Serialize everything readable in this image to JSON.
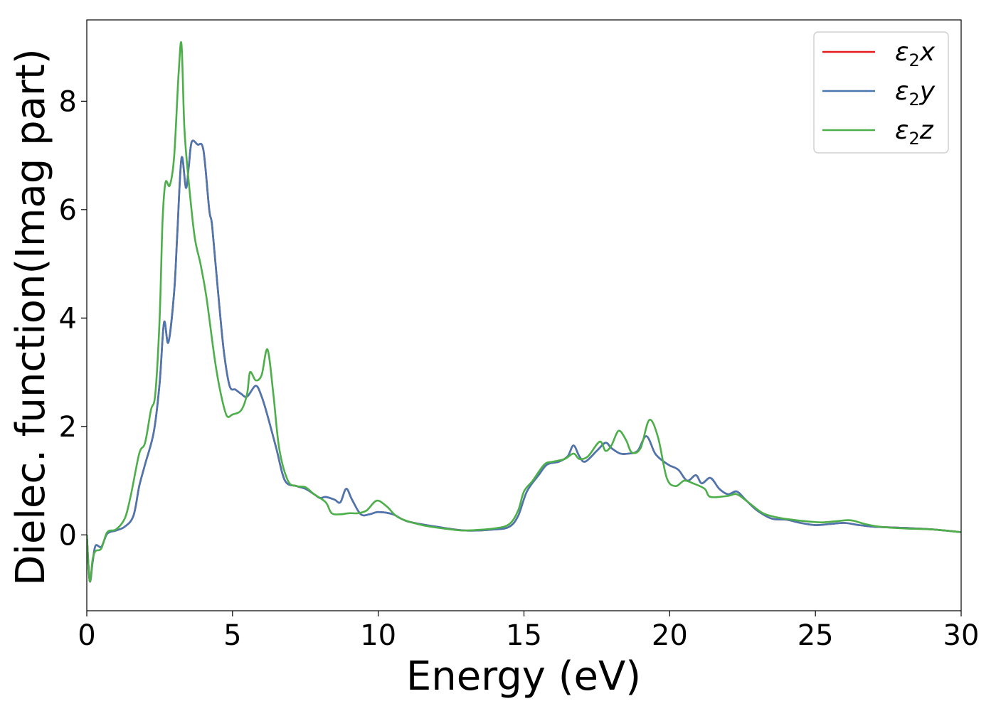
{
  "chart_data": {
    "type": "line",
    "xlabel": "Energy (eV)",
    "ylabel": "Dielec. function(Imag part)",
    "xlim": [
      0,
      30
    ],
    "ylim": [
      -1.4,
      9.5
    ],
    "xticks": [
      0,
      5,
      10,
      15,
      20,
      25,
      30
    ],
    "yticks": [
      0,
      2,
      4,
      6,
      8
    ],
    "grid": false,
    "legend_position": "top-right",
    "series": [
      {
        "name": "ε2x",
        "base": "ε",
        "sub": "2",
        "var": "x",
        "color": "#e41a1c",
        "points": [
          [
            0,
            0
          ],
          [
            0.1,
            -0.85
          ],
          [
            0.2,
            -0.5
          ],
          [
            0.3,
            -0.2
          ],
          [
            0.5,
            -0.22
          ],
          [
            0.7,
            0.02
          ],
          [
            1.0,
            0.08
          ],
          [
            1.3,
            0.15
          ],
          [
            1.6,
            0.35
          ],
          [
            1.8,
            0.9
          ],
          [
            2.0,
            1.3
          ],
          [
            2.3,
            1.9
          ],
          [
            2.5,
            2.8
          ],
          [
            2.65,
            3.92
          ],
          [
            2.8,
            3.55
          ],
          [
            3.0,
            4.5
          ],
          [
            3.1,
            5.5
          ],
          [
            3.25,
            6.95
          ],
          [
            3.4,
            6.4
          ],
          [
            3.5,
            6.8
          ],
          [
            3.6,
            7.25
          ],
          [
            3.8,
            7.2
          ],
          [
            4.0,
            7.1
          ],
          [
            4.2,
            6.0
          ],
          [
            4.3,
            5.7
          ],
          [
            4.5,
            4.5
          ],
          [
            4.7,
            3.4
          ],
          [
            4.9,
            2.75
          ],
          [
            5.1,
            2.68
          ],
          [
            5.3,
            2.6
          ],
          [
            5.5,
            2.55
          ],
          [
            5.8,
            2.75
          ],
          [
            6.0,
            2.55
          ],
          [
            6.2,
            2.2
          ],
          [
            6.5,
            1.6
          ],
          [
            6.8,
            1.0
          ],
          [
            7.2,
            0.9
          ],
          [
            7.5,
            0.85
          ],
          [
            7.8,
            0.75
          ],
          [
            8.0,
            0.68
          ],
          [
            8.2,
            0.7
          ],
          [
            8.5,
            0.65
          ],
          [
            8.7,
            0.6
          ],
          [
            8.9,
            0.85
          ],
          [
            9.1,
            0.65
          ],
          [
            9.4,
            0.38
          ],
          [
            9.7,
            0.38
          ],
          [
            10.0,
            0.42
          ],
          [
            10.5,
            0.38
          ],
          [
            11.0,
            0.25
          ],
          [
            12.0,
            0.15
          ],
          [
            13.0,
            0.08
          ],
          [
            14.0,
            0.1
          ],
          [
            14.5,
            0.15
          ],
          [
            14.8,
            0.35
          ],
          [
            15.1,
            0.8
          ],
          [
            15.5,
            1.1
          ],
          [
            15.8,
            1.3
          ],
          [
            16.2,
            1.35
          ],
          [
            16.5,
            1.45
          ],
          [
            16.7,
            1.65
          ],
          [
            16.9,
            1.45
          ],
          [
            17.1,
            1.35
          ],
          [
            17.5,
            1.55
          ],
          [
            17.8,
            1.7
          ],
          [
            18.0,
            1.6
          ],
          [
            18.3,
            1.5
          ],
          [
            18.6,
            1.5
          ],
          [
            18.9,
            1.55
          ],
          [
            19.2,
            1.82
          ],
          [
            19.5,
            1.5
          ],
          [
            19.8,
            1.35
          ],
          [
            20.0,
            1.28
          ],
          [
            20.3,
            1.2
          ],
          [
            20.6,
            1.0
          ],
          [
            20.9,
            1.1
          ],
          [
            21.1,
            0.95
          ],
          [
            21.4,
            1.05
          ],
          [
            21.7,
            0.85
          ],
          [
            22.0,
            0.75
          ],
          [
            22.3,
            0.8
          ],
          [
            22.6,
            0.65
          ],
          [
            23.0,
            0.45
          ],
          [
            23.5,
            0.3
          ],
          [
            24.0,
            0.28
          ],
          [
            24.5,
            0.22
          ],
          [
            25.0,
            0.18
          ],
          [
            25.5,
            0.2
          ],
          [
            26.0,
            0.22
          ],
          [
            26.5,
            0.18
          ],
          [
            27.0,
            0.15
          ],
          [
            28.0,
            0.13
          ],
          [
            29.0,
            0.1
          ],
          [
            30.0,
            0.05
          ]
        ]
      },
      {
        "name": "ε2y",
        "base": "ε",
        "sub": "2",
        "var": "y",
        "color": "#4a77b0",
        "points": [
          [
            0,
            0
          ],
          [
            0.1,
            -0.85
          ],
          [
            0.2,
            -0.5
          ],
          [
            0.3,
            -0.2
          ],
          [
            0.5,
            -0.22
          ],
          [
            0.7,
            0.02
          ],
          [
            1.0,
            0.08
          ],
          [
            1.3,
            0.15
          ],
          [
            1.6,
            0.35
          ],
          [
            1.8,
            0.9
          ],
          [
            2.0,
            1.3
          ],
          [
            2.3,
            1.9
          ],
          [
            2.5,
            2.8
          ],
          [
            2.65,
            3.92
          ],
          [
            2.8,
            3.55
          ],
          [
            3.0,
            4.5
          ],
          [
            3.1,
            5.5
          ],
          [
            3.25,
            6.95
          ],
          [
            3.4,
            6.4
          ],
          [
            3.5,
            6.8
          ],
          [
            3.6,
            7.25
          ],
          [
            3.8,
            7.2
          ],
          [
            4.0,
            7.1
          ],
          [
            4.2,
            6.0
          ],
          [
            4.3,
            5.7
          ],
          [
            4.5,
            4.5
          ],
          [
            4.7,
            3.4
          ],
          [
            4.9,
            2.75
          ],
          [
            5.1,
            2.68
          ],
          [
            5.3,
            2.6
          ],
          [
            5.5,
            2.55
          ],
          [
            5.8,
            2.75
          ],
          [
            6.0,
            2.55
          ],
          [
            6.2,
            2.2
          ],
          [
            6.5,
            1.6
          ],
          [
            6.8,
            1.0
          ],
          [
            7.2,
            0.9
          ],
          [
            7.5,
            0.85
          ],
          [
            7.8,
            0.75
          ],
          [
            8.0,
            0.68
          ],
          [
            8.2,
            0.7
          ],
          [
            8.5,
            0.65
          ],
          [
            8.7,
            0.6
          ],
          [
            8.9,
            0.85
          ],
          [
            9.1,
            0.65
          ],
          [
            9.4,
            0.38
          ],
          [
            9.7,
            0.38
          ],
          [
            10.0,
            0.42
          ],
          [
            10.5,
            0.38
          ],
          [
            11.0,
            0.25
          ],
          [
            12.0,
            0.15
          ],
          [
            13.0,
            0.08
          ],
          [
            14.0,
            0.1
          ],
          [
            14.5,
            0.15
          ],
          [
            14.8,
            0.35
          ],
          [
            15.1,
            0.8
          ],
          [
            15.5,
            1.1
          ],
          [
            15.8,
            1.3
          ],
          [
            16.2,
            1.35
          ],
          [
            16.5,
            1.45
          ],
          [
            16.7,
            1.65
          ],
          [
            16.9,
            1.45
          ],
          [
            17.1,
            1.35
          ],
          [
            17.5,
            1.55
          ],
          [
            17.8,
            1.7
          ],
          [
            18.0,
            1.6
          ],
          [
            18.3,
            1.5
          ],
          [
            18.6,
            1.5
          ],
          [
            18.9,
            1.55
          ],
          [
            19.2,
            1.82
          ],
          [
            19.5,
            1.5
          ],
          [
            19.8,
            1.35
          ],
          [
            20.0,
            1.28
          ],
          [
            20.3,
            1.2
          ],
          [
            20.6,
            1.0
          ],
          [
            20.9,
            1.1
          ],
          [
            21.1,
            0.95
          ],
          [
            21.4,
            1.05
          ],
          [
            21.7,
            0.85
          ],
          [
            22.0,
            0.75
          ],
          [
            22.3,
            0.8
          ],
          [
            22.6,
            0.65
          ],
          [
            23.0,
            0.45
          ],
          [
            23.5,
            0.3
          ],
          [
            24.0,
            0.28
          ],
          [
            24.5,
            0.22
          ],
          [
            25.0,
            0.18
          ],
          [
            25.5,
            0.2
          ],
          [
            26.0,
            0.22
          ],
          [
            26.5,
            0.18
          ],
          [
            27.0,
            0.15
          ],
          [
            28.0,
            0.13
          ],
          [
            29.0,
            0.1
          ],
          [
            30.0,
            0.05
          ]
        ]
      },
      {
        "name": "ε2z",
        "base": "ε",
        "sub": "2",
        "var": "z",
        "color": "#4daf4a",
        "points": [
          [
            0,
            0
          ],
          [
            0.1,
            -0.85
          ],
          [
            0.2,
            -0.45
          ],
          [
            0.3,
            -0.3
          ],
          [
            0.5,
            -0.25
          ],
          [
            0.7,
            0.05
          ],
          [
            1.0,
            0.1
          ],
          [
            1.3,
            0.3
          ],
          [
            1.5,
            0.7
          ],
          [
            1.8,
            1.5
          ],
          [
            2.0,
            1.7
          ],
          [
            2.2,
            2.3
          ],
          [
            2.35,
            2.6
          ],
          [
            2.5,
            4.0
          ],
          [
            2.6,
            5.8
          ],
          [
            2.7,
            6.5
          ],
          [
            2.85,
            6.45
          ],
          [
            3.0,
            7.0
          ],
          [
            3.15,
            8.5
          ],
          [
            3.25,
            9.05
          ],
          [
            3.35,
            7.5
          ],
          [
            3.5,
            6.5
          ],
          [
            3.7,
            5.5
          ],
          [
            3.9,
            5.0
          ],
          [
            4.1,
            4.4
          ],
          [
            4.4,
            3.2
          ],
          [
            4.6,
            2.6
          ],
          [
            4.8,
            2.2
          ],
          [
            5.0,
            2.22
          ],
          [
            5.3,
            2.3
          ],
          [
            5.5,
            2.6
          ],
          [
            5.6,
            3.0
          ],
          [
            5.8,
            2.85
          ],
          [
            6.0,
            2.95
          ],
          [
            6.2,
            3.42
          ],
          [
            6.4,
            2.6
          ],
          [
            6.6,
            1.6
          ],
          [
            6.9,
            1.0
          ],
          [
            7.2,
            0.9
          ],
          [
            7.5,
            0.88
          ],
          [
            7.8,
            0.75
          ],
          [
            8.2,
            0.6
          ],
          [
            8.4,
            0.4
          ],
          [
            8.7,
            0.38
          ],
          [
            9.0,
            0.4
          ],
          [
            9.3,
            0.4
          ],
          [
            9.6,
            0.45
          ],
          [
            9.95,
            0.63
          ],
          [
            10.3,
            0.52
          ],
          [
            10.7,
            0.32
          ],
          [
            11.5,
            0.18
          ],
          [
            12.5,
            0.1
          ],
          [
            13.0,
            0.08
          ],
          [
            14.0,
            0.12
          ],
          [
            14.5,
            0.2
          ],
          [
            14.8,
            0.45
          ],
          [
            15.0,
            0.8
          ],
          [
            15.3,
            1.0
          ],
          [
            15.7,
            1.3
          ],
          [
            16.0,
            1.35
          ],
          [
            16.4,
            1.4
          ],
          [
            16.7,
            1.5
          ],
          [
            16.9,
            1.4
          ],
          [
            17.2,
            1.45
          ],
          [
            17.6,
            1.72
          ],
          [
            17.8,
            1.55
          ],
          [
            18.0,
            1.65
          ],
          [
            18.25,
            1.92
          ],
          [
            18.5,
            1.75
          ],
          [
            18.7,
            1.52
          ],
          [
            19.0,
            1.6
          ],
          [
            19.3,
            2.12
          ],
          [
            19.6,
            1.8
          ],
          [
            19.9,
            1.05
          ],
          [
            20.2,
            0.9
          ],
          [
            20.5,
            1.0
          ],
          [
            20.8,
            0.95
          ],
          [
            21.2,
            0.85
          ],
          [
            21.4,
            0.7
          ],
          [
            22.0,
            0.72
          ],
          [
            22.3,
            0.75
          ],
          [
            22.7,
            0.6
          ],
          [
            23.2,
            0.4
          ],
          [
            23.7,
            0.32
          ],
          [
            24.2,
            0.28
          ],
          [
            24.7,
            0.25
          ],
          [
            25.2,
            0.23
          ],
          [
            25.7,
            0.25
          ],
          [
            26.2,
            0.27
          ],
          [
            26.7,
            0.2
          ],
          [
            27.2,
            0.15
          ],
          [
            28.0,
            0.12
          ],
          [
            29.0,
            0.1
          ],
          [
            30.0,
            0.05
          ]
        ]
      }
    ]
  }
}
